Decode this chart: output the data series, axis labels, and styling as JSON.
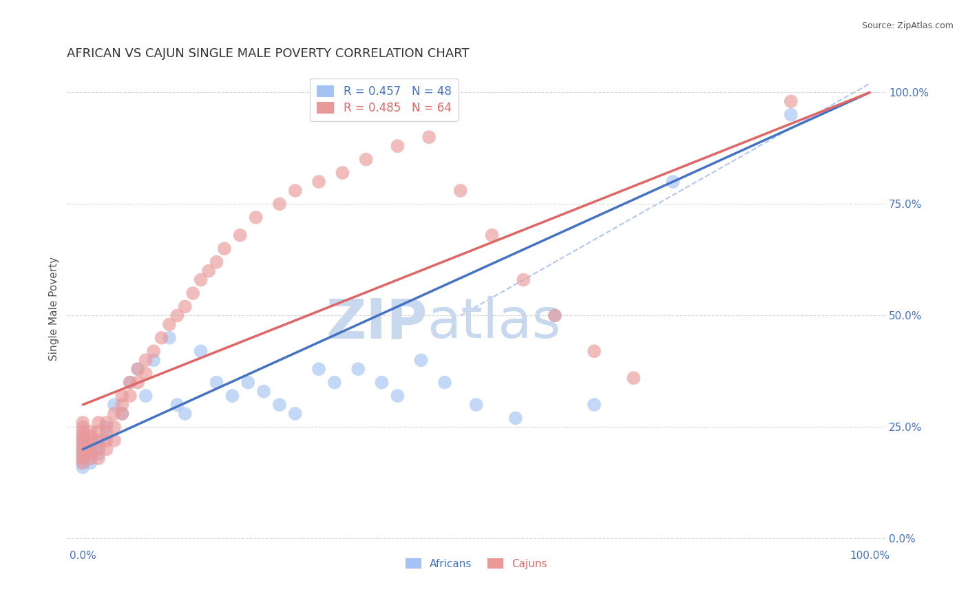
{
  "title": "AFRICAN VS CAJUN SINGLE MALE POVERTY CORRELATION CHART",
  "source": "Source: ZipAtlas.com",
  "ylabel": "Single Male Poverty",
  "ytick_labels": [
    "0.0%",
    "25.0%",
    "50.0%",
    "75.0%",
    "100.0%"
  ],
  "ytick_values": [
    0.0,
    0.25,
    0.5,
    0.75,
    1.0
  ],
  "xlim": [
    -0.02,
    1.02
  ],
  "ylim": [
    -0.02,
    1.05
  ],
  "african_R": 0.457,
  "african_N": 48,
  "cajun_R": 0.485,
  "cajun_N": 64,
  "african_color": "#a4c2f4",
  "cajun_color": "#ea9999",
  "african_line_color": "#4472c4",
  "cajun_line_color": "#e06666",
  "diagonal_color": "#b0c8f0",
  "watermark_zip_color": "#c8d8ef",
  "watermark_atlas_color": "#c8d8ef",
  "background_color": "#ffffff",
  "grid_color": "#cccccc",
  "title_color": "#333333",
  "axis_label_color": "#555555",
  "tick_color": "#4472c4",
  "african_line_x0": 0.0,
  "african_line_y0": 0.2,
  "african_line_x1": 1.0,
  "african_line_y1": 1.0,
  "cajun_line_x0": 0.0,
  "cajun_line_y0": 0.3,
  "cajun_line_x1": 1.0,
  "cajun_line_y1": 1.0,
  "diag_line_x0": 0.48,
  "diag_line_y0": 0.5,
  "diag_line_x1": 1.0,
  "diag_line_y1": 1.02,
  "african_x": [
    0.0,
    0.0,
    0.0,
    0.0,
    0.0,
    0.0,
    0.0,
    0.0,
    0.01,
    0.01,
    0.01,
    0.01,
    0.01,
    0.02,
    0.02,
    0.02,
    0.02,
    0.03,
    0.03,
    0.04,
    0.05,
    0.06,
    0.07,
    0.08,
    0.09,
    0.11,
    0.12,
    0.13,
    0.15,
    0.17,
    0.19,
    0.21,
    0.23,
    0.25,
    0.27,
    0.3,
    0.32,
    0.35,
    0.38,
    0.4,
    0.43,
    0.46,
    0.5,
    0.55,
    0.6,
    0.65,
    0.75,
    0.9
  ],
  "african_y": [
    0.18,
    0.19,
    0.2,
    0.21,
    0.22,
    0.23,
    0.17,
    0.16,
    0.19,
    0.2,
    0.21,
    0.18,
    0.17,
    0.2,
    0.22,
    0.19,
    0.21,
    0.25,
    0.23,
    0.3,
    0.28,
    0.35,
    0.38,
    0.32,
    0.4,
    0.45,
    0.3,
    0.28,
    0.42,
    0.35,
    0.32,
    0.35,
    0.33,
    0.3,
    0.28,
    0.38,
    0.35,
    0.38,
    0.35,
    0.32,
    0.4,
    0.35,
    0.3,
    0.27,
    0.5,
    0.3,
    0.8,
    0.95
  ],
  "cajun_x": [
    0.0,
    0.0,
    0.0,
    0.0,
    0.0,
    0.0,
    0.0,
    0.0,
    0.0,
    0.0,
    0.01,
    0.01,
    0.01,
    0.01,
    0.01,
    0.01,
    0.01,
    0.02,
    0.02,
    0.02,
    0.02,
    0.02,
    0.03,
    0.03,
    0.03,
    0.03,
    0.04,
    0.04,
    0.04,
    0.05,
    0.05,
    0.05,
    0.06,
    0.06,
    0.07,
    0.07,
    0.08,
    0.08,
    0.09,
    0.1,
    0.11,
    0.12,
    0.13,
    0.14,
    0.15,
    0.16,
    0.17,
    0.18,
    0.2,
    0.22,
    0.25,
    0.27,
    0.3,
    0.33,
    0.36,
    0.4,
    0.44,
    0.48,
    0.52,
    0.56,
    0.6,
    0.65,
    0.7,
    0.9
  ],
  "cajun_y": [
    0.2,
    0.22,
    0.24,
    0.26,
    0.18,
    0.19,
    0.21,
    0.23,
    0.25,
    0.17,
    0.2,
    0.22,
    0.24,
    0.18,
    0.19,
    0.21,
    0.23,
    0.2,
    0.22,
    0.24,
    0.18,
    0.26,
    0.22,
    0.24,
    0.2,
    0.26,
    0.25,
    0.28,
    0.22,
    0.3,
    0.28,
    0.32,
    0.35,
    0.32,
    0.38,
    0.35,
    0.4,
    0.37,
    0.42,
    0.45,
    0.48,
    0.5,
    0.52,
    0.55,
    0.58,
    0.6,
    0.62,
    0.65,
    0.68,
    0.72,
    0.75,
    0.78,
    0.8,
    0.82,
    0.85,
    0.88,
    0.9,
    0.78,
    0.68,
    0.58,
    0.5,
    0.42,
    0.36,
    0.98
  ]
}
